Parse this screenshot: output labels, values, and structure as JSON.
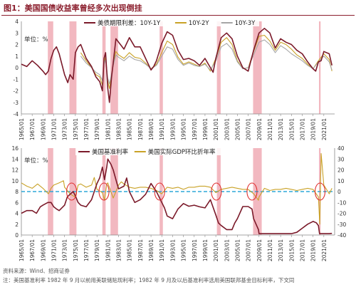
{
  "title": "图1：美国国债收益率曾经多次出现倒挂",
  "source": "资料来源：Wind、招商证券",
  "note": "注：美国基准利率 1982 年 9 月以前用美联储贴现利率；1982 年 9 月及以后基准利率选用美国联邦基金目标利率，下文同",
  "colors": {
    "dark_red": "#7b1a2a",
    "gold": "#c9a227",
    "gray": "#a6a6a6",
    "recession": "#f2b8c0",
    "dashed": "#2ea8d8",
    "circle": "#e03030"
  },
  "chart_data": [
    {
      "type": "line",
      "legend_position": "top",
      "unit_label": "单位：%",
      "ylim": [
        -4,
        4
      ],
      "yticks": [
        "-4",
        "-3",
        "-2",
        "-1",
        "0",
        "1",
        "2",
        "3",
        "4"
      ],
      "xlim": [
        1965,
        2023
      ],
      "xticks": [
        "1965/01",
        "1967/01",
        "1969/01",
        "1971/01",
        "1973/01",
        "1975/01",
        "1977/01",
        "1979/01",
        "1981/01",
        "1983/01",
        "1985/01",
        "1987/01",
        "1989/01",
        "1991/01",
        "1993/01",
        "1995/01",
        "1997/01",
        "1999/01",
        "2001/01",
        "2003/01",
        "2005/01",
        "2007/01",
        "2009/01",
        "2011/01",
        "2013/01",
        "2015/01",
        "2017/01",
        "2019/01",
        "2021/01"
      ],
      "recessions": [
        [
          1969.9,
          1970.9
        ],
        [
          1973.9,
          1975.2
        ],
        [
          1980.0,
          1980.6
        ],
        [
          1981.5,
          1982.9
        ],
        [
          1990.6,
          1991.2
        ],
        [
          2001.2,
          2001.9
        ],
        [
          2007.9,
          2009.5
        ],
        [
          2020.1,
          2020.4
        ]
      ],
      "series": [
        {
          "name": "美债期限利差：10Y-1Y",
          "color_key": "dark_red",
          "x": [
            1965,
            1966,
            1967,
            1968,
            1969,
            1969.5,
            1970,
            1970.5,
            1971,
            1971.5,
            1972,
            1973,
            1973.6,
            1974,
            1974.6,
            1975,
            1975.5,
            1976,
            1977,
            1978,
            1978.8,
            1979.5,
            1980,
            1980.3,
            1980.6,
            1981,
            1981.3,
            1981.7,
            1982,
            1982.5,
            1983,
            1984,
            1985,
            1986,
            1987,
            1988,
            1989,
            1989.5,
            1990,
            1991,
            1992,
            1993,
            1994,
            1995,
            1996,
            1997,
            1998,
            1999,
            2000,
            2000.5,
            2001,
            2002,
            2003,
            2004,
            2005,
            2006,
            2007,
            2008,
            2009,
            2010,
            2011,
            2012,
            2013,
            2014,
            2015,
            2016,
            2017,
            2018,
            2019,
            2019.5,
            2020,
            2020.5,
            2021,
            2022,
            2022.5
          ],
          "y": [
            0.3,
            0.1,
            0.6,
            0.2,
            -0.3,
            -0.6,
            -0.3,
            0.8,
            1.5,
            1.8,
            1.2,
            -0.6,
            -1.3,
            -0.6,
            -1.0,
            1.3,
            1.8,
            2.0,
            0.8,
            0.1,
            -0.8,
            -1.2,
            -2.0,
            0.8,
            1.3,
            -1.8,
            -3.0,
            -0.8,
            0.4,
            2.5,
            2.2,
            1.6,
            2.6,
            1.8,
            1.8,
            0.8,
            -0.2,
            0.1,
            0.6,
            2.1,
            3.1,
            2.8,
            1.5,
            0.7,
            0.8,
            0.6,
            0.2,
            0.8,
            0.0,
            -0.4,
            0.8,
            2.6,
            3.0,
            2.5,
            1.0,
            0.0,
            -0.3,
            1.5,
            3.0,
            3.4,
            3.0,
            1.7,
            2.5,
            2.2,
            2.0,
            1.5,
            1.2,
            0.5,
            -0.1,
            -0.3,
            0.5,
            0.6,
            1.4,
            1.2,
            0.2
          ]
        },
        {
          "name": "10Y-2Y",
          "color_key": "gold",
          "x": [
            1976,
            1977,
            1978,
            1978.8,
            1979.5,
            1980,
            1980.3,
            1980.6,
            1981,
            1981.3,
            1982,
            1982.5,
            1983,
            1984,
            1985,
            1986,
            1987,
            1988,
            1989,
            1990,
            1991,
            1992,
            1993,
            1994,
            1995,
            1996,
            1997,
            1998,
            1999,
            2000,
            2001,
            2002,
            2003,
            2004,
            2005,
            2006,
            2007,
            2008,
            2009,
            2010,
            2011,
            2012,
            2013,
            2014,
            2015,
            2016,
            2017,
            2018,
            2019,
            2020,
            2021,
            2022,
            2022.5
          ],
          "y": [
            1.3,
            0.6,
            0.0,
            -0.6,
            -0.8,
            -1.5,
            0.5,
            0.9,
            -1.2,
            -1.8,
            0.3,
            1.4,
            1.1,
            0.8,
            1.3,
            0.9,
            0.8,
            0.4,
            -0.1,
            0.3,
            1.3,
            2.3,
            2.0,
            0.9,
            0.3,
            0.5,
            0.3,
            0.1,
            0.4,
            -0.3,
            0.8,
            2.2,
            2.6,
            2.0,
            0.6,
            -0.1,
            0.0,
            1.4,
            2.7,
            2.8,
            2.3,
            1.5,
            2.2,
            2.0,
            1.6,
            1.1,
            0.8,
            0.3,
            -0.1,
            0.6,
            1.2,
            0.7,
            -0.3
          ]
        },
        {
          "name": "10Y-3Y",
          "color_key": "gray",
          "x": [
            1976,
            1977,
            1978,
            1978.8,
            1979.5,
            1980,
            1980.3,
            1980.6,
            1981,
            1981.3,
            1982,
            1982.5,
            1983,
            1984,
            1985,
            1986,
            1987,
            1988,
            1989,
            1990,
            1991,
            1992,
            1993,
            1994,
            1995,
            1996,
            1997,
            1998,
            1999,
            2000,
            2001,
            2002,
            2003,
            2004,
            2005,
            2006,
            2007,
            2008,
            2009,
            2010,
            2011,
            2012,
            2013,
            2014,
            2015,
            2016,
            2017,
            2018,
            2019,
            2020,
            2021,
            2022,
            2022.5
          ],
          "y": [
            1.0,
            0.4,
            0.0,
            -0.4,
            -0.6,
            -1.1,
            0.3,
            0.7,
            -0.9,
            -1.4,
            0.2,
            1.1,
            0.9,
            0.6,
            1.0,
            0.7,
            0.6,
            0.3,
            -0.1,
            0.2,
            1.0,
            1.8,
            1.6,
            0.7,
            0.2,
            0.4,
            0.2,
            0.1,
            0.3,
            -0.2,
            0.6,
            1.8,
            2.1,
            1.6,
            0.5,
            -0.1,
            0.0,
            1.1,
            2.2,
            2.4,
            2.0,
            1.3,
            1.9,
            1.6,
            1.2,
            0.9,
            0.6,
            0.2,
            -0.1,
            0.5,
            1.0,
            0.5,
            -0.2
          ]
        }
      ]
    },
    {
      "type": "line",
      "legend_position": "top",
      "unit_label": "单位：%",
      "ylim": [
        0,
        16
      ],
      "yticks": [
        "0",
        "2",
        "4",
        "6",
        "8",
        "10",
        "12",
        "14",
        "16"
      ],
      "y2lim": [
        -40,
        40
      ],
      "y2ticks": [
        "-40",
        "-30",
        "-20",
        "-10",
        "0",
        "10",
        "20",
        "30",
        "40"
      ],
      "xlim": [
        1965,
        2023
      ],
      "xticks": [
        "1965/01",
        "1967/01",
        "1969/01",
        "1971/01",
        "1973/01",
        "1975/01",
        "1977/01",
        "1979/01",
        "1981/01",
        "1983/01",
        "1985/01",
        "1987/01",
        "1989/01",
        "1991/01",
        "1993/01",
        "1995/01",
        "1997/01",
        "1999/01",
        "2001/01",
        "2003/01",
        "2005/01",
        "2007/01",
        "2009/01",
        "2011/01",
        "2013/01",
        "2015/01",
        "2017/01",
        "2019/01",
        "2021/01"
      ],
      "recessions": [
        [
          1969.9,
          1970.9
        ],
        [
          1973.9,
          1975.2
        ],
        [
          1980.0,
          1980.6
        ],
        [
          1981.5,
          1982.9
        ],
        [
          1990.6,
          1991.2
        ],
        [
          2001.2,
          2001.9
        ],
        [
          2007.9,
          2009.5
        ],
        [
          2020.1,
          2020.4
        ]
      ],
      "reference_line": {
        "axis": "y2",
        "value": 0
      },
      "highlight_circles": [
        1974.3,
        1980.3,
        1990.6,
        2001.1,
        2007.7,
        2020.3
      ],
      "series": [
        {
          "name": "美国基准利率",
          "axis": "y",
          "color_key": "dark_red",
          "x": [
            1965,
            1966,
            1967,
            1967.8,
            1968.5,
            1969,
            1969.9,
            1970.5,
            1971,
            1971.5,
            1972,
            1973,
            1973.5,
            1974,
            1974.6,
            1975,
            1975.5,
            1976,
            1977,
            1978,
            1979,
            1979.5,
            1980,
            1980.4,
            1980.8,
            1981,
            1981.6,
            1982,
            1982.7,
            1983,
            1984,
            1984.5,
            1985,
            1986,
            1987,
            1988,
            1989,
            1990,
            1991,
            1991.5,
            1992,
            1993,
            1994,
            1995,
            1996,
            1997,
            1998,
            1999,
            2000,
            2001,
            2001.5,
            2002,
            2003,
            2004,
            2004.5,
            2005,
            2006,
            2007,
            2007.7,
            2008,
            2008.9,
            2009,
            2015,
            2016,
            2017,
            2018,
            2019,
            2019.6,
            2020,
            2020.2,
            2021,
            2022,
            2022.5
          ],
          "y": [
            4.0,
            4.5,
            4.5,
            4.0,
            5.2,
            5.5,
            6.0,
            6.0,
            5.2,
            4.8,
            4.5,
            5.5,
            7.0,
            7.5,
            8.0,
            7.2,
            6.0,
            5.5,
            5.2,
            6.5,
            9.5,
            10.5,
            12.5,
            10.2,
            12.5,
            14.0,
            13.0,
            12.0,
            9.5,
            8.5,
            9.0,
            10.5,
            8.0,
            6.0,
            6.5,
            7.5,
            9.5,
            8.0,
            6.0,
            5.0,
            3.5,
            3.0,
            4.8,
            5.8,
            5.3,
            5.5,
            5.2,
            5.0,
            6.5,
            3.7,
            2.2,
            1.75,
            1.0,
            1.0,
            2.2,
            3.0,
            5.25,
            5.25,
            4.8,
            3.0,
            1.0,
            0.25,
            0.25,
            0.5,
            1.25,
            2.0,
            2.5,
            2.25,
            1.75,
            0.25,
            0.25,
            0.25,
            0.3
          ]
        },
        {
          "name": "美国实际GDP环比折年率",
          "axis": "y2",
          "color_key": "gold",
          "x": [
            1965,
            1966,
            1967,
            1968,
            1969,
            1970,
            1970.5,
            1971,
            1972,
            1972.8,
            1973,
            1974,
            1974.6,
            1975,
            1975.5,
            1976,
            1977,
            1978,
            1978.5,
            1979,
            1980,
            1980.4,
            1980.8,
            1981,
            1982,
            1983,
            1983.5,
            1984,
            1985,
            1986,
            1987,
            1988,
            1989,
            1990,
            1991,
            1992,
            1993,
            1994,
            1995,
            1996,
            1997,
            1998,
            1999,
            2000,
            2001,
            2002,
            2003,
            2004,
            2005,
            2006,
            2007,
            2008,
            2008.9,
            2009,
            2010,
            2011,
            2012,
            2013,
            2014,
            2015,
            2016,
            2017,
            2018,
            2019,
            2020,
            2020.25,
            2020.5,
            2021,
            2022,
            2022.5
          ],
          "y": [
            8,
            5,
            3,
            7,
            3,
            -2,
            3,
            6,
            8,
            10,
            4,
            -2,
            -4,
            -5,
            6,
            7,
            4,
            6,
            13,
            2,
            -1,
            -8,
            7,
            8,
            -6,
            6,
            9,
            7,
            4,
            3,
            4,
            4,
            3,
            1,
            -2,
            4,
            3,
            4,
            2,
            4,
            4,
            5,
            5,
            4,
            -1,
            2,
            3,
            4,
            3,
            2,
            2,
            -2,
            -8,
            -5,
            3,
            1,
            2,
            2,
            3,
            2,
            1,
            2,
            3,
            2,
            -5,
            -30,
            35,
            6,
            -2,
            3
          ]
        }
      ]
    }
  ]
}
